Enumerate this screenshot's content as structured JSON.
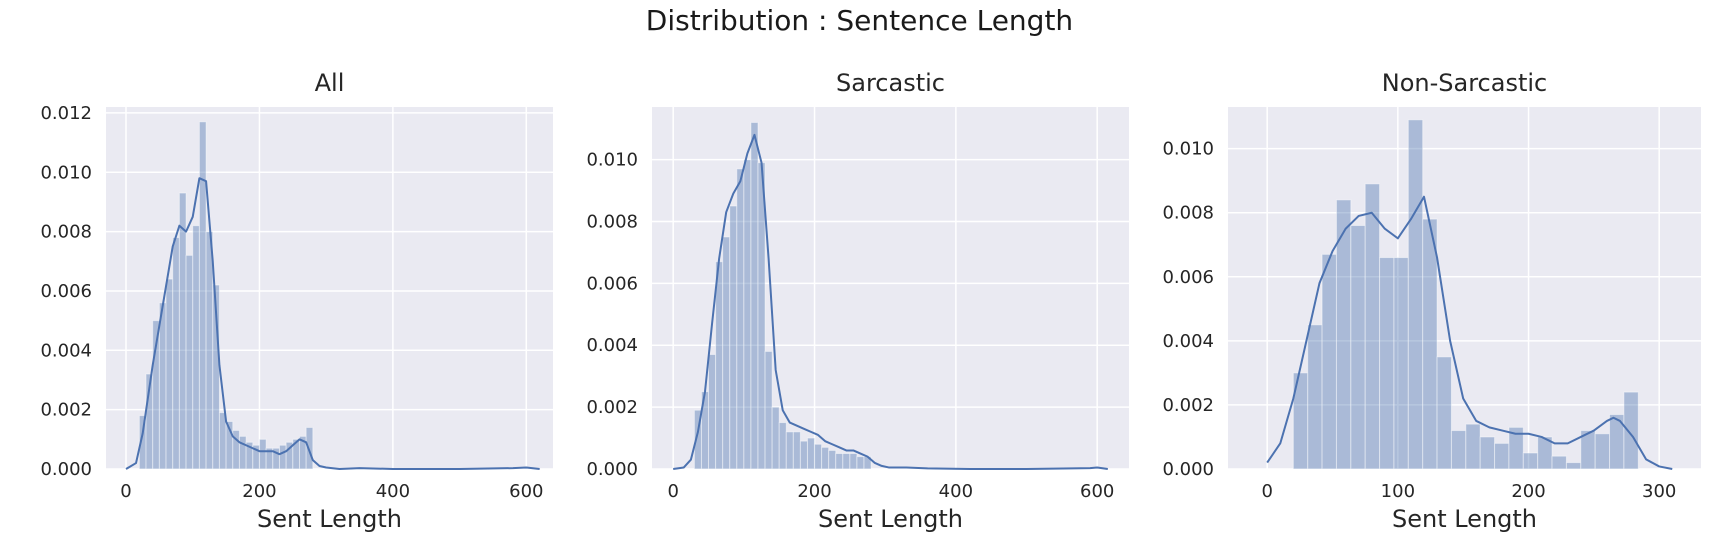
{
  "figure": {
    "suptitle": "Distribution : Sentence Length",
    "colors": {
      "background": "#EAEAF2",
      "grid": "#FFFFFF",
      "bar": "#4C72B0",
      "kde": "#4C72B0"
    }
  },
  "chart_data": [
    {
      "type": "histogram",
      "title": "All",
      "xlabel": "Sent Length",
      "ylabel": "",
      "xlim": [
        -30,
        640
      ],
      "ylim": [
        0,
        0.0122
      ],
      "xticks": [
        0,
        200,
        400,
        600
      ],
      "xtick_labels": [
        "0",
        "200",
        "400",
        "600"
      ],
      "yticks": [
        0,
        0.002,
        0.004,
        0.006,
        0.008,
        0.01,
        0.012
      ],
      "ytick_labels": [
        "0.000",
        "0.002",
        "0.004",
        "0.006",
        "0.008",
        "0.010",
        "0.012"
      ],
      "grid": true,
      "bins": [
        {
          "x0": 20,
          "x1": 30,
          "density": 0.0018
        },
        {
          "x0": 30,
          "x1": 40,
          "density": 0.0032
        },
        {
          "x0": 40,
          "x1": 50,
          "density": 0.005
        },
        {
          "x0": 50,
          "x1": 60,
          "density": 0.0056
        },
        {
          "x0": 60,
          "x1": 70,
          "density": 0.0064
        },
        {
          "x0": 70,
          "x1": 80,
          "density": 0.0078
        },
        {
          "x0": 80,
          "x1": 90,
          "density": 0.0093
        },
        {
          "x0": 90,
          "x1": 100,
          "density": 0.0072
        },
        {
          "x0": 100,
          "x1": 110,
          "density": 0.0082
        },
        {
          "x0": 110,
          "x1": 120,
          "density": 0.0117
        },
        {
          "x0": 120,
          "x1": 130,
          "density": 0.008
        },
        {
          "x0": 130,
          "x1": 140,
          "density": 0.0062
        },
        {
          "x0": 140,
          "x1": 150,
          "density": 0.0019
        },
        {
          "x0": 150,
          "x1": 160,
          "density": 0.0016
        },
        {
          "x0": 160,
          "x1": 170,
          "density": 0.0013
        },
        {
          "x0": 170,
          "x1": 180,
          "density": 0.0011
        },
        {
          "x0": 180,
          "x1": 190,
          "density": 0.0009
        },
        {
          "x0": 190,
          "x1": 200,
          "density": 0.0008
        },
        {
          "x0": 200,
          "x1": 210,
          "density": 0.001
        },
        {
          "x0": 210,
          "x1": 220,
          "density": 0.0007
        },
        {
          "x0": 220,
          "x1": 230,
          "density": 0.0007
        },
        {
          "x0": 230,
          "x1": 240,
          "density": 0.0008
        },
        {
          "x0": 240,
          "x1": 250,
          "density": 0.0009
        },
        {
          "x0": 250,
          "x1": 260,
          "density": 0.001
        },
        {
          "x0": 260,
          "x1": 270,
          "density": 0.0011
        },
        {
          "x0": 270,
          "x1": 280,
          "density": 0.0014
        }
      ],
      "kde": {
        "x": [
          0,
          15,
          25,
          40,
          55,
          70,
          80,
          90,
          100,
          110,
          120,
          130,
          140,
          150,
          160,
          170,
          180,
          190,
          200,
          210,
          220,
          230,
          240,
          250,
          260,
          270,
          280,
          290,
          300,
          320,
          350,
          400,
          500,
          580,
          600,
          620
        ],
        "y": [
          0.0,
          0.0002,
          0.0012,
          0.0035,
          0.0055,
          0.0075,
          0.0082,
          0.008,
          0.0085,
          0.0098,
          0.0097,
          0.007,
          0.0035,
          0.0016,
          0.0011,
          0.0009,
          0.0008,
          0.0007,
          0.0006,
          0.0006,
          0.0006,
          0.0005,
          0.0006,
          0.0008,
          0.001,
          0.0009,
          0.0003,
          0.0001,
          5e-05,
          0.0,
          3e-05,
          0.0,
          0.0,
          3e-05,
          5e-05,
          0.0
        ]
      }
    },
    {
      "type": "histogram",
      "title": "Sarcastic",
      "xlabel": "Sent Length",
      "ylabel": "",
      "xlim": [
        -30,
        645
      ],
      "ylim": [
        0,
        0.0117
      ],
      "xticks": [
        0,
        200,
        400,
        600
      ],
      "xtick_labels": [
        "0",
        "200",
        "400",
        "600"
      ],
      "yticks": [
        0,
        0.002,
        0.004,
        0.006,
        0.008,
        0.01
      ],
      "ytick_labels": [
        "0.000",
        "0.002",
        "0.004",
        "0.006",
        "0.008",
        "0.010"
      ],
      "grid": true,
      "bins": [
        {
          "x0": 30,
          "x1": 40,
          "density": 0.0019
        },
        {
          "x0": 40,
          "x1": 50,
          "density": 0.0025
        },
        {
          "x0": 50,
          "x1": 60,
          "density": 0.0037
        },
        {
          "x0": 60,
          "x1": 70,
          "density": 0.0067
        },
        {
          "x0": 70,
          "x1": 80,
          "density": 0.0075
        },
        {
          "x0": 80,
          "x1": 90,
          "density": 0.0085
        },
        {
          "x0": 90,
          "x1": 100,
          "density": 0.0097
        },
        {
          "x0": 100,
          "x1": 110,
          "density": 0.01
        },
        {
          "x0": 110,
          "x1": 120,
          "density": 0.0112
        },
        {
          "x0": 120,
          "x1": 130,
          "density": 0.0099
        },
        {
          "x0": 130,
          "x1": 140,
          "density": 0.0038
        },
        {
          "x0": 140,
          "x1": 150,
          "density": 0.002
        },
        {
          "x0": 150,
          "x1": 160,
          "density": 0.0015
        },
        {
          "x0": 160,
          "x1": 170,
          "density": 0.0012
        },
        {
          "x0": 170,
          "x1": 180,
          "density": 0.0012
        },
        {
          "x0": 180,
          "x1": 190,
          "density": 0.0009
        },
        {
          "x0": 190,
          "x1": 200,
          "density": 0.001
        },
        {
          "x0": 200,
          "x1": 210,
          "density": 0.0008
        },
        {
          "x0": 210,
          "x1": 220,
          "density": 0.0007
        },
        {
          "x0": 220,
          "x1": 230,
          "density": 0.0006
        },
        {
          "x0": 230,
          "x1": 240,
          "density": 0.0005
        },
        {
          "x0": 240,
          "x1": 250,
          "density": 0.0005
        },
        {
          "x0": 250,
          "x1": 260,
          "density": 0.0005
        },
        {
          "x0": 260,
          "x1": 270,
          "density": 0.0004
        },
        {
          "x0": 270,
          "x1": 280,
          "density": 0.0004
        }
      ],
      "kde": {
        "x": [
          0,
          15,
          25,
          35,
          45,
          55,
          65,
          75,
          85,
          95,
          105,
          115,
          125,
          135,
          145,
          155,
          165,
          175,
          185,
          195,
          205,
          215,
          225,
          235,
          245,
          255,
          265,
          275,
          285,
          295,
          305,
          330,
          360,
          420,
          500,
          590,
          600,
          615
        ],
        "y": [
          0.0,
          5e-05,
          0.0003,
          0.0012,
          0.0025,
          0.0047,
          0.0068,
          0.0083,
          0.0089,
          0.0093,
          0.0102,
          0.0108,
          0.0099,
          0.0068,
          0.0032,
          0.0019,
          0.0015,
          0.0014,
          0.0013,
          0.0012,
          0.0011,
          0.0009,
          0.0008,
          0.0007,
          0.0006,
          0.0006,
          0.0005,
          0.0004,
          0.0002,
          0.0001,
          5e-05,
          5e-05,
          2e-05,
          0.0,
          0.0,
          3e-05,
          5e-05,
          0.0
        ]
      }
    },
    {
      "type": "histogram",
      "title": "Non-Sarcastic",
      "xlabel": "Sent Length",
      "ylabel": "",
      "xlim": [
        -30,
        332
      ],
      "ylim": [
        0,
        0.0113
      ],
      "xticks": [
        0,
        100,
        200,
        300
      ],
      "xtick_labels": [
        "0",
        "100",
        "200",
        "300"
      ],
      "yticks": [
        0,
        0.002,
        0.004,
        0.006,
        0.008,
        0.01
      ],
      "ytick_labels": [
        "0.000",
        "0.002",
        "0.004",
        "0.006",
        "0.008",
        "0.010"
      ],
      "grid": true,
      "bins": [
        {
          "x0": 20,
          "x1": 31,
          "density": 0.003
        },
        {
          "x0": 31,
          "x1": 42,
          "density": 0.0045
        },
        {
          "x0": 42,
          "x1": 53,
          "density": 0.0067
        },
        {
          "x0": 53,
          "x1": 64,
          "density": 0.0084
        },
        {
          "x0": 64,
          "x1": 75,
          "density": 0.0076
        },
        {
          "x0": 75,
          "x1": 86,
          "density": 0.0089
        },
        {
          "x0": 86,
          "x1": 97,
          "density": 0.0066
        },
        {
          "x0": 97,
          "x1": 108,
          "density": 0.0066
        },
        {
          "x0": 108,
          "x1": 119,
          "density": 0.0109
        },
        {
          "x0": 119,
          "x1": 130,
          "density": 0.0078
        },
        {
          "x0": 130,
          "x1": 141,
          "density": 0.0035
        },
        {
          "x0": 141,
          "x1": 152,
          "density": 0.0012
        },
        {
          "x0": 152,
          "x1": 163,
          "density": 0.0014
        },
        {
          "x0": 163,
          "x1": 174,
          "density": 0.001
        },
        {
          "x0": 174,
          "x1": 185,
          "density": 0.0008
        },
        {
          "x0": 185,
          "x1": 196,
          "density": 0.0013
        },
        {
          "x0": 196,
          "x1": 207,
          "density": 0.0005
        },
        {
          "x0": 207,
          "x1": 218,
          "density": 0.001
        },
        {
          "x0": 218,
          "x1": 229,
          "density": 0.0004
        },
        {
          "x0": 229,
          "x1": 240,
          "density": 0.0002
        },
        {
          "x0": 240,
          "x1": 251,
          "density": 0.0012
        },
        {
          "x0": 251,
          "x1": 262,
          "density": 0.0011
        },
        {
          "x0": 262,
          "x1": 273,
          "density": 0.0017
        },
        {
          "x0": 273,
          "x1": 284,
          "density": 0.0024
        }
      ],
      "kde": {
        "x": [
          0,
          10,
          20,
          30,
          40,
          50,
          60,
          70,
          80,
          90,
          100,
          110,
          120,
          130,
          140,
          150,
          160,
          170,
          180,
          190,
          200,
          210,
          220,
          230,
          240,
          250,
          260,
          265,
          270,
          280,
          290,
          300,
          310
        ],
        "y": [
          0.0002,
          0.0008,
          0.0022,
          0.004,
          0.0058,
          0.0068,
          0.0075,
          0.0079,
          0.008,
          0.0075,
          0.0072,
          0.0078,
          0.0085,
          0.0066,
          0.004,
          0.0022,
          0.0015,
          0.0013,
          0.0012,
          0.0011,
          0.0011,
          0.001,
          0.0008,
          0.0008,
          0.001,
          0.0012,
          0.0015,
          0.0016,
          0.0015,
          0.001,
          0.0003,
          8e-05,
          0.0
        ]
      }
    }
  ]
}
